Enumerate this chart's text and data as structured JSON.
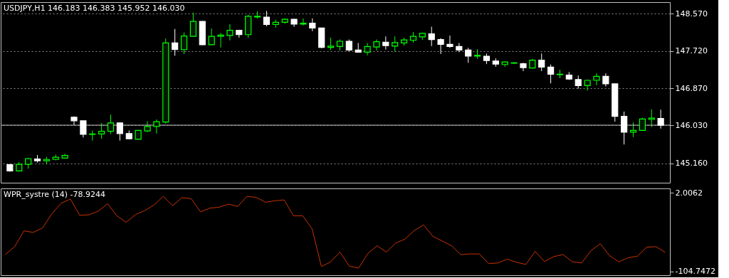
{
  "chart_data": [
    {
      "type": "candlestick",
      "title": "USDJPY,H1  146.183 146.383 145.952 146.030",
      "categories": [
        null,
        null,
        null,
        null,
        null,
        null,
        null,
        null,
        null,
        null,
        null,
        null,
        null,
        null,
        null,
        null,
        null,
        null,
        null,
        null,
        null,
        null,
        null,
        null,
        null,
        null,
        null,
        null,
        null,
        null,
        null,
        null,
        null,
        null,
        null,
        null,
        null,
        null,
        null,
        null,
        null,
        null,
        null,
        null,
        null,
        null,
        null,
        null,
        null,
        null,
        null,
        null,
        null,
        null,
        null,
        null,
        null,
        null,
        null,
        null,
        null,
        null,
        null,
        null,
        null,
        null,
        null,
        null,
        null,
        null,
        null,
        null
      ],
      "ohlc": [
        [
          145.13,
          145.15,
          144.97,
          144.99
        ],
        [
          144.99,
          145.19,
          144.97,
          145.14
        ],
        [
          145.14,
          145.29,
          145.04,
          145.27
        ],
        [
          145.26,
          145.35,
          145.18,
          145.22
        ],
        [
          145.22,
          145.31,
          145.14,
          145.25
        ],
        [
          145.25,
          145.36,
          145.23,
          145.3
        ],
        [
          145.28,
          145.38,
          145.28,
          145.34
        ],
        [
          146.21,
          146.23,
          146.03,
          146.13
        ],
        [
          146.13,
          146.13,
          145.75,
          145.82
        ],
        [
          145.82,
          145.91,
          145.68,
          145.83
        ],
        [
          145.83,
          146.08,
          145.72,
          145.89
        ],
        [
          145.89,
          146.27,
          145.83,
          146.08
        ],
        [
          146.08,
          146.09,
          145.68,
          145.84
        ],
        [
          145.84,
          145.91,
          145.71,
          145.72
        ],
        [
          145.71,
          145.92,
          145.7,
          145.91
        ],
        [
          145.9,
          146.12,
          145.87,
          146.0
        ],
        [
          146.0,
          146.16,
          145.84,
          146.11
        ],
        [
          146.1,
          148.0,
          146.07,
          147.9
        ],
        [
          147.9,
          148.22,
          147.61,
          147.75
        ],
        [
          147.75,
          148.14,
          147.65,
          148.06
        ],
        [
          148.05,
          148.59,
          148.04,
          148.39
        ],
        [
          148.39,
          148.4,
          147.85,
          147.86
        ],
        [
          147.86,
          148.23,
          147.85,
          148.05
        ],
        [
          148.05,
          148.13,
          147.8,
          148.08
        ],
        [
          148.07,
          148.33,
          147.96,
          148.19
        ],
        [
          148.19,
          148.2,
          148.02,
          148.09
        ],
        [
          148.09,
          148.54,
          148.02,
          148.51
        ],
        [
          148.49,
          148.62,
          148.46,
          148.51
        ],
        [
          148.49,
          148.63,
          148.28,
          148.32
        ],
        [
          148.32,
          148.43,
          148.25,
          148.37
        ],
        [
          148.37,
          148.46,
          148.34,
          148.44
        ],
        [
          148.44,
          148.45,
          148.27,
          148.33
        ],
        [
          148.33,
          148.46,
          148.3,
          148.35
        ],
        [
          148.35,
          148.46,
          148.17,
          148.24
        ],
        [
          148.24,
          148.24,
          147.78,
          147.8
        ],
        [
          147.8,
          148.02,
          147.74,
          147.83
        ],
        [
          147.82,
          147.98,
          147.73,
          147.94
        ],
        [
          147.94,
          147.98,
          147.71,
          147.74
        ],
        [
          147.74,
          147.9,
          147.69,
          147.69
        ],
        [
          147.69,
          147.9,
          147.62,
          147.82
        ],
        [
          147.81,
          147.98,
          147.73,
          147.93
        ],
        [
          147.92,
          148.05,
          147.75,
          147.84
        ],
        [
          147.83,
          148.05,
          147.71,
          147.91
        ],
        [
          147.9,
          148.02,
          147.84,
          147.97
        ],
        [
          147.96,
          148.15,
          147.91,
          148.05
        ],
        [
          148.04,
          148.13,
          147.97,
          148.12
        ],
        [
          148.11,
          148.27,
          147.83,
          147.98
        ],
        [
          147.98,
          148.01,
          147.65,
          147.87
        ],
        [
          147.87,
          148.07,
          147.79,
          147.82
        ],
        [
          147.82,
          147.9,
          147.69,
          147.74
        ],
        [
          147.74,
          147.79,
          147.45,
          147.6
        ],
        [
          147.6,
          147.76,
          147.54,
          147.62
        ],
        [
          147.6,
          147.66,
          147.42,
          147.5
        ],
        [
          147.49,
          147.55,
          147.36,
          147.42
        ],
        [
          147.41,
          147.48,
          147.36,
          147.47
        ],
        [
          147.44,
          147.46,
          147.42,
          147.45
        ],
        [
          147.43,
          147.45,
          147.26,
          147.34
        ],
        [
          147.33,
          147.54,
          147.32,
          147.51
        ],
        [
          147.51,
          147.66,
          147.26,
          147.35
        ],
        [
          147.35,
          147.41,
          146.98,
          147.19
        ],
        [
          147.18,
          147.29,
          147.1,
          147.19
        ],
        [
          147.17,
          147.24,
          147.06,
          147.08
        ],
        [
          147.07,
          147.16,
          146.86,
          146.93
        ],
        [
          146.93,
          147.07,
          146.82,
          147.05
        ],
        [
          147.05,
          147.21,
          146.94,
          147.14
        ],
        [
          147.14,
          147.21,
          146.91,
          146.97
        ],
        [
          146.97,
          146.97,
          146.11,
          146.23
        ],
        [
          146.23,
          146.34,
          145.59,
          145.87
        ],
        [
          145.87,
          146.09,
          145.76,
          145.91
        ],
        [
          145.91,
          146.2,
          145.9,
          146.17
        ],
        [
          146.16,
          146.39,
          145.99,
          146.19
        ],
        [
          146.183,
          146.383,
          145.952,
          146.03
        ]
      ],
      "colors": [
        "#ffffff",
        "#00ff00",
        "#00ff00",
        "#ffffff",
        "#00ff00",
        "#00ff00",
        "#00ff00",
        "#ffffff",
        "#ffffff",
        "#00ff00",
        "#00ff00",
        "#00ff00",
        "#ffffff",
        "#ffffff",
        "#00ff00",
        "#00ff00",
        "#00ff00",
        "#00ff00",
        "#ffffff",
        "#00ff00",
        "#00ff00",
        "#ffffff",
        "#00ff00",
        "#00ff00",
        "#00ff00",
        "#ffffff",
        "#00ff00",
        "#00ff00",
        "#ffffff",
        "#00ff00",
        "#00ff00",
        "#ffffff",
        "#00ff00",
        "#ffffff",
        "#ffffff",
        "#00ff00",
        "#00ff00",
        "#ffffff",
        "#ffffff",
        "#00ff00",
        "#00ff00",
        "#ffffff",
        "#00ff00",
        "#00ff00",
        "#00ff00",
        "#00ff00",
        "#ffffff",
        "#ffffff",
        "#ffffff",
        "#ffffff",
        "#ffffff",
        "#00ff00",
        "#ffffff",
        "#ffffff",
        "#00ff00",
        "#00ff00",
        "#ffffff",
        "#00ff00",
        "#ffffff",
        "#ffffff",
        "#00ff00",
        "#ffffff",
        "#ffffff",
        "#00ff00",
        "#00ff00",
        "#ffffff",
        "#ffffff",
        "#ffffff",
        "#00ff00",
        "#00ff00",
        "#00ff00",
        "#ffffff"
      ],
      "ylim": [
        144.72,
        148.83
      ],
      "yticks": [
        {
          "value": 145.16,
          "label": "145.160"
        },
        {
          "value": 146.03,
          "label": "146.030"
        },
        {
          "value": 146.87,
          "label": "146.870"
        },
        {
          "value": 147.72,
          "label": "147.720"
        },
        {
          "value": 148.57,
          "label": "148.570"
        }
      ],
      "ref_lines": [
        {
          "axis": "y",
          "value": 146.03,
          "color": "#c0c0c0",
          "line_style": "solid"
        }
      ],
      "grid": "y",
      "tick_labels": "y"
    },
    {
      "type": "line",
      "title": "WPR_systre (14) -78.9244",
      "categories": [
        null,
        null,
        null,
        null,
        null,
        null,
        null,
        null,
        null,
        null,
        null,
        null,
        null,
        null,
        null,
        null,
        null,
        null,
        null,
        null,
        null,
        null,
        null,
        null,
        null,
        null,
        null,
        null,
        null,
        null,
        null,
        null,
        null,
        null,
        null,
        null,
        null,
        null,
        null,
        null,
        null,
        null,
        null,
        null,
        null,
        null,
        null,
        null,
        null,
        null,
        null,
        null,
        null,
        null,
        null,
        null,
        null,
        null,
        null,
        null,
        null,
        null,
        null,
        null,
        null,
        null,
        null,
        null,
        null,
        null,
        null,
        null
      ],
      "series": [
        {
          "color": "#c83200",
          "values": [
            -82.0,
            -71.2,
            -49.8,
            -51.8,
            -45.8,
            -26.5,
            -12.2,
            -6.5,
            -28.5,
            -27.9,
            -22.8,
            -12.8,
            -29.3,
            -38.1,
            -27.6,
            -22.2,
            -14.5,
            -2.8,
            -15.6,
            -4.5,
            -6.0,
            -23.9,
            -18.8,
            -17.6,
            -13.4,
            -16.5,
            -2.8,
            -4.3,
            -10.8,
            -8.8,
            -7.7,
            -29.3,
            -29.3,
            -47.0,
            -98.2,
            -91.9,
            -78.6,
            -97.6,
            -100.5,
            -80.6,
            -70.0,
            -78.6,
            -66.3,
            -60.9,
            -49.2,
            -41.6,
            -57.2,
            -63.5,
            -70.0,
            -82.0,
            -81.1,
            -81.1,
            -94.2,
            -93.4,
            -88.2,
            -92.5,
            -95.4,
            -77.7,
            -91.4,
            -84.8,
            -82.0,
            -91.7,
            -93.4,
            -76.9,
            -67.2,
            -83.4,
            -91.9,
            -86.3,
            -84.3,
            -72.0,
            -71.2,
            -78.9244
          ]
        }
      ],
      "ylim": [
        -110,
        8
      ],
      "yticks": [
        2.0062,
        -104.7472
      ],
      "tick_labels": "y",
      "line_style": "solid"
    }
  ]
}
